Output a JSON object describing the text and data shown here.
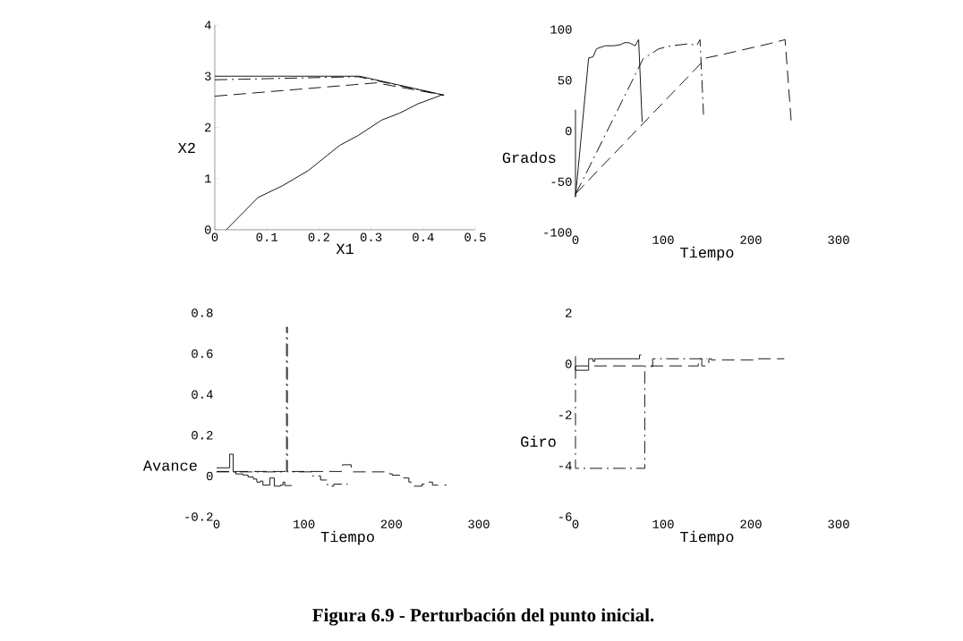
{
  "chart_data": [
    {
      "type": "line",
      "xlabel": "X1",
      "ylabel": "X2",
      "xlim": [
        0,
        0.5
      ],
      "ylim": [
        0,
        4
      ],
      "xticks": [
        0,
        0.1,
        0.2,
        0.3,
        0.4,
        0.5
      ],
      "yticks": [
        0,
        1,
        2,
        3,
        4
      ],
      "annotations": [
        "Figura 6.9 - Perturbación del punto inicial."
      ],
      "series": [
        {
          "color": "#000000",
          "line_style": "solid",
          "x": [
            0.022,
            0.083,
            0.13,
            0.18,
            0.24,
            0.275,
            0.32,
            0.355,
            0.39,
            0.435,
            0.44,
            0.278,
            0
          ],
          "values": [
            0,
            0.63,
            0.86,
            1.16,
            1.65,
            1.84,
            2.14,
            2.28,
            2.46,
            2.63,
            2.63,
            3.0,
            3.0
          ]
        },
        {
          "color": "#000000",
          "line_style": "dashdot",
          "x": [
            0,
            0.275,
            0.44
          ],
          "values": [
            2.93,
            2.99,
            2.63
          ]
        },
        {
          "color": "#000000",
          "line_style": "dashed",
          "x": [
            0,
            0.31,
            0.44
          ],
          "values": [
            2.61,
            2.87,
            2.63
          ]
        }
      ]
    },
    {
      "type": "line",
      "xlabel": "Tiempo",
      "ylabel": "Grados",
      "xlim": [
        0,
        300
      ],
      "ylim": [
        -100,
        100
      ],
      "xticks": [
        0,
        100,
        200,
        300
      ],
      "yticks": [
        -100,
        -50,
        0,
        50,
        100
      ],
      "series": [
        {
          "color": "#000000",
          "line_style": "solid",
          "x": [
            0,
            0,
            15,
            20,
            24,
            34,
            44,
            51,
            56,
            61,
            68,
            72,
            76
          ],
          "values": [
            21,
            -65,
            72,
            73,
            81,
            84,
            84,
            85,
            87,
            87,
            84,
            90,
            9
          ]
        },
        {
          "color": "#000000",
          "line_style": "dashdot",
          "x": [
            0,
            8,
            77,
            95,
            110,
            130,
            138,
            142,
            146
          ],
          "values": [
            -62,
            -49,
            71,
            81,
            84,
            86,
            84,
            90,
            16
          ]
        },
        {
          "color": "#000000",
          "line_style": "dashed",
          "x": [
            0,
            149,
            166,
            221,
            239,
            246
          ],
          "values": [
            -62,
            72,
            75,
            86,
            90,
            9
          ]
        }
      ]
    },
    {
      "type": "step",
      "xlabel": "Tiempo",
      "ylabel": "Avance",
      "xlim": [
        0,
        300
      ],
      "ylim": [
        -0.2,
        0.8
      ],
      "xticks": [
        0,
        100,
        200,
        300
      ],
      "yticks": [
        -0.2,
        0,
        0.2,
        0.4,
        0.6,
        0.8
      ],
      "series": [
        {
          "color": "#000000",
          "line_style": "solid",
          "x": [
            0,
            15,
            19,
            22,
            30,
            36,
            42,
            46,
            50,
            53,
            58,
            61,
            66,
            73,
            76,
            78,
            86
          ],
          "values": [
            0.04,
            0.107,
            0.02,
            0.01,
            0.005,
            -0.005,
            -0.015,
            -0.03,
            -0.025,
            -0.045,
            -0.045,
            -0.01,
            -0.05,
            -0.045,
            -0.03,
            -0.047,
            -0.047
          ]
        },
        {
          "color": "#000000",
          "line_style": "dashdot",
          "x": [
            0,
            80,
            81,
            110,
            119,
            127,
            134,
            150
          ],
          "values": [
            0.02,
            0.73,
            0.02,
            0.0,
            -0.02,
            -0.05,
            -0.04,
            -0.04
          ]
        },
        {
          "color": "#000000",
          "line_style": "dashed",
          "x": [
            0,
            144,
            154,
            164,
            198,
            201,
            213,
            220,
            225,
            235,
            240,
            247,
            263
          ],
          "values": [
            0.022,
            0.055,
            0.02,
            0.02,
            0.01,
            0.004,
            -0.01,
            -0.03,
            -0.05,
            -0.04,
            -0.03,
            -0.045,
            -0.045
          ]
        }
      ]
    },
    {
      "type": "step",
      "xlabel": "Tiempo",
      "ylabel": "Giro",
      "xlim": [
        0,
        300
      ],
      "ylim": [
        -6,
        2
      ],
      "xticks": [
        0,
        100,
        200,
        300
      ],
      "yticks": [
        -6,
        -4,
        -2,
        0,
        2
      ],
      "series": [
        {
          "color": "#000000",
          "line_style": "solid",
          "x": [
            0,
            0,
            15,
            20,
            22,
            73,
            75
          ],
          "values": [
            0.3,
            -0.25,
            0.2,
            0.1,
            0.2,
            0.35,
            0.35
          ]
        },
        {
          "color": "#000000",
          "line_style": "dashdot",
          "x": [
            0,
            0,
            79,
            88,
            150
          ],
          "values": [
            -0.1,
            -4.1,
            -0.1,
            0.2,
            0.2
          ]
        },
        {
          "color": "#000000",
          "line_style": "dashed",
          "x": [
            0,
            140,
            144,
            152,
            155,
            200,
            203,
            238
          ],
          "values": [
            -0.08,
            0.2,
            -0.08,
            0.2,
            0.15,
            0.15,
            0.2,
            0.2
          ]
        }
      ]
    }
  ]
}
